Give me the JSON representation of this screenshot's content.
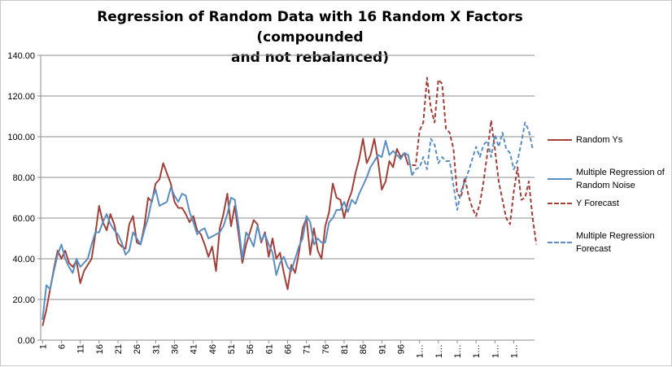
{
  "chart_data": {
    "type": "line",
    "title_lines": [
      "Regression of Random Data with 16 Random X Factors (compounded",
      "and not rebalanced)"
    ],
    "xlabel": "",
    "ylabel": "",
    "ylim": [
      0,
      140
    ],
    "y_ticks": [
      "0.00",
      "20.00",
      "40.00",
      "60.00",
      "80.00",
      "100.00",
      "120.00",
      "140.00"
    ],
    "x_tick_labels": [
      "1",
      "6",
      "11",
      "16",
      "21",
      "26",
      "31",
      "36",
      "41",
      "46",
      "51",
      "56",
      "61",
      "66",
      "71",
      "76",
      "81",
      "86",
      "91",
      "96",
      "1…",
      "1…",
      "1…",
      "1…",
      "1…",
      "1…"
    ],
    "grid": true,
    "legend_position": "right",
    "series": [
      {
        "name": "Random Ys",
        "color": "#a0403a",
        "style": "solid",
        "x_start": 1,
        "values": [
          7,
          15,
          25,
          35,
          44,
          40,
          44,
          38,
          36,
          39,
          28,
          34,
          37,
          40,
          52,
          66,
          58,
          54,
          62,
          57,
          48,
          46,
          45,
          57,
          61,
          48,
          47,
          56,
          70,
          68,
          77,
          79,
          87,
          82,
          77,
          68,
          65,
          65,
          62,
          58,
          61,
          54,
          52,
          47,
          41,
          46,
          34,
          55,
          62,
          72,
          56,
          66,
          52,
          38,
          47,
          53,
          59,
          57,
          48,
          53,
          41,
          50,
          40,
          43,
          33,
          25,
          37,
          33,
          43,
          55,
          60,
          42,
          55,
          44,
          40,
          56,
          63,
          77,
          70,
          69,
          60,
          68,
          73,
          82,
          89,
          99,
          87,
          91,
          99,
          88,
          74,
          78,
          88,
          85,
          94,
          90,
          92,
          86
        ]
      },
      {
        "name": "Multiple Regression of Random Noise",
        "color": "#5b8ec0",
        "style": "solid",
        "x_start": 1,
        "values": [
          10,
          27,
          25,
          34,
          42,
          47,
          40,
          36,
          33,
          40,
          36,
          38,
          40,
          47,
          53,
          53,
          58,
          62,
          57,
          54,
          52,
          48,
          42,
          44,
          53,
          50,
          47,
          54,
          60,
          69,
          74,
          66,
          67,
          68,
          75,
          71,
          68,
          72,
          71,
          63,
          58,
          52,
          54,
          55,
          50,
          51,
          52,
          53,
          56,
          62,
          70,
          69,
          56,
          40,
          53,
          50,
          46,
          56,
          49,
          52,
          47,
          43,
          32,
          38,
          41,
          36,
          34,
          40,
          46,
          50,
          61,
          58,
          47,
          50,
          48,
          48,
          58,
          60,
          64,
          64,
          68,
          63,
          69,
          67,
          72,
          76,
          80,
          85,
          88,
          91,
          90,
          98,
          91,
          93,
          91,
          89,
          92,
          91,
          81
        ]
      },
      {
        "name": "Y Forecast",
        "color": "#a0403a",
        "style": "dashed",
        "x_start": 99,
        "values": [
          86,
          86,
          103,
          107,
          129,
          114,
          107,
          128,
          126,
          104,
          102,
          94,
          72,
          70,
          80,
          71,
          65,
          61,
          67,
          78,
          92,
          108,
          94,
          78,
          69,
          60,
          57,
          73,
          85,
          69,
          70,
          78,
          60,
          47
        ]
      },
      {
        "name": "Multiple Regression Forecast",
        "color": "#5b8ec0",
        "style": "dashed",
        "x_start": 99,
        "values": [
          81,
          84,
          85,
          90,
          84,
          99,
          96,
          87,
          90,
          88,
          88,
          76,
          64,
          73,
          78,
          83,
          89,
          95,
          90,
          96,
          98,
          90,
          101,
          95,
          102,
          94,
          92,
          84,
          88,
          97,
          107,
          103,
          94
        ]
      }
    ]
  }
}
